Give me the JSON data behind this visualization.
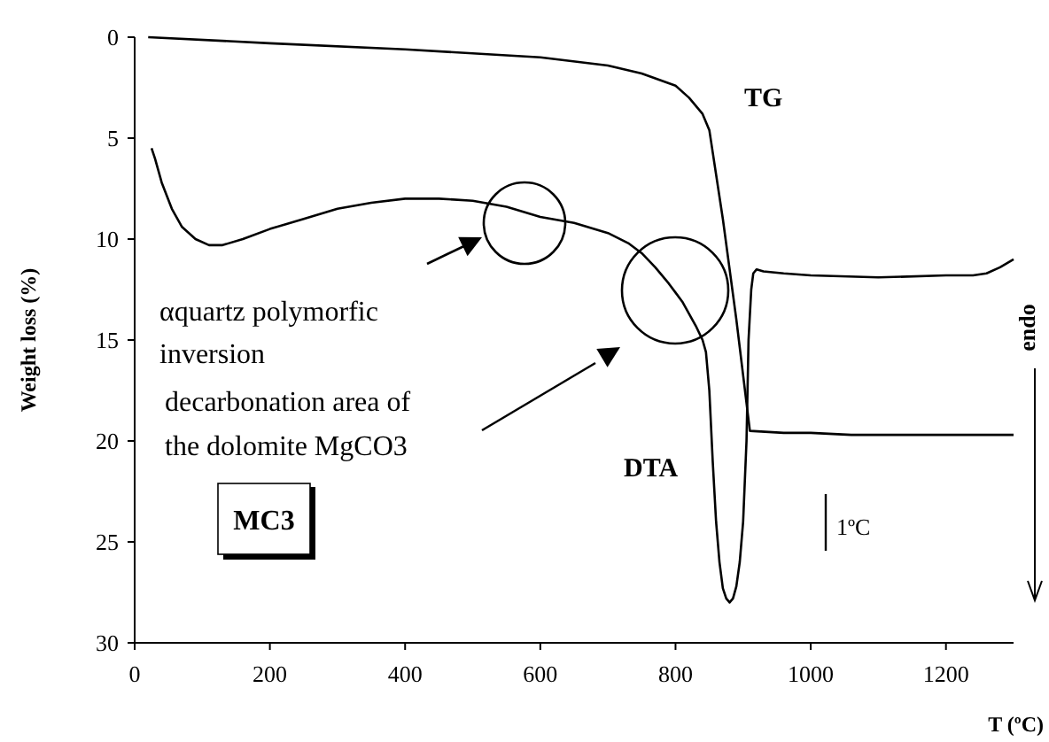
{
  "chart_data": {
    "type": "line",
    "xlabel": "T (ºC)",
    "ylabel": "Weight loss (%)",
    "xlim": [
      0,
      1300
    ],
    "xticks": [
      0,
      200,
      400,
      600,
      800,
      1000,
      1200
    ],
    "ylim": [
      30,
      0
    ],
    "yticks": [
      0,
      5,
      10,
      15,
      20,
      25,
      30
    ],
    "grid": false,
    "marker": "none",
    "line_style": "solid",
    "series": [
      {
        "name": "TG",
        "color": "#000000",
        "x": [
          20,
          200,
          400,
          600,
          700,
          750,
          800,
          820,
          840,
          850,
          870,
          890,
          910,
          960,
          1000,
          1060,
          1300
        ],
        "values": [
          0,
          0.3,
          0.6,
          1,
          1.4,
          1.8,
          2.4,
          3,
          3.8,
          4.6,
          9,
          14,
          19.5,
          19.6,
          19.6,
          19.7,
          19.7
        ]
      },
      {
        "name": "DTA",
        "color": "#000000",
        "x": [
          25,
          30,
          40,
          55,
          70,
          90,
          110,
          130,
          160,
          200,
          250,
          300,
          350,
          400,
          450,
          500,
          550,
          600,
          650,
          700,
          730,
          750,
          770,
          790,
          810,
          830,
          840,
          845,
          850,
          855,
          860,
          865,
          870,
          875,
          880,
          885,
          890,
          895,
          900,
          905,
          908,
          912,
          915,
          920,
          930,
          960,
          1000,
          1100,
          1200,
          1240,
          1260,
          1280,
          1300
        ],
        "values": [
          5.5,
          6,
          7.2,
          8.5,
          9.4,
          10,
          10.3,
          10.3,
          10,
          9.5,
          9,
          8.5,
          8.2,
          8,
          8,
          8.1,
          8.4,
          8.9,
          9.2,
          9.7,
          10.2,
          10.7,
          11.4,
          12.2,
          13.1,
          14.3,
          15,
          15.6,
          17.5,
          21,
          24,
          26,
          27.3,
          27.8,
          28,
          27.8,
          27.2,
          26,
          24,
          20,
          15,
          12.5,
          11.7,
          11.5,
          11.6,
          11.7,
          11.8,
          11.9,
          11.8,
          11.8,
          11.7,
          11.4,
          11
        ]
      }
    ],
    "annotations": [
      "αquartz polymorfic inversion",
      "decarbonation area of the dolomite MgCO3",
      "MC3",
      "1ºC",
      "endo"
    ]
  }
}
